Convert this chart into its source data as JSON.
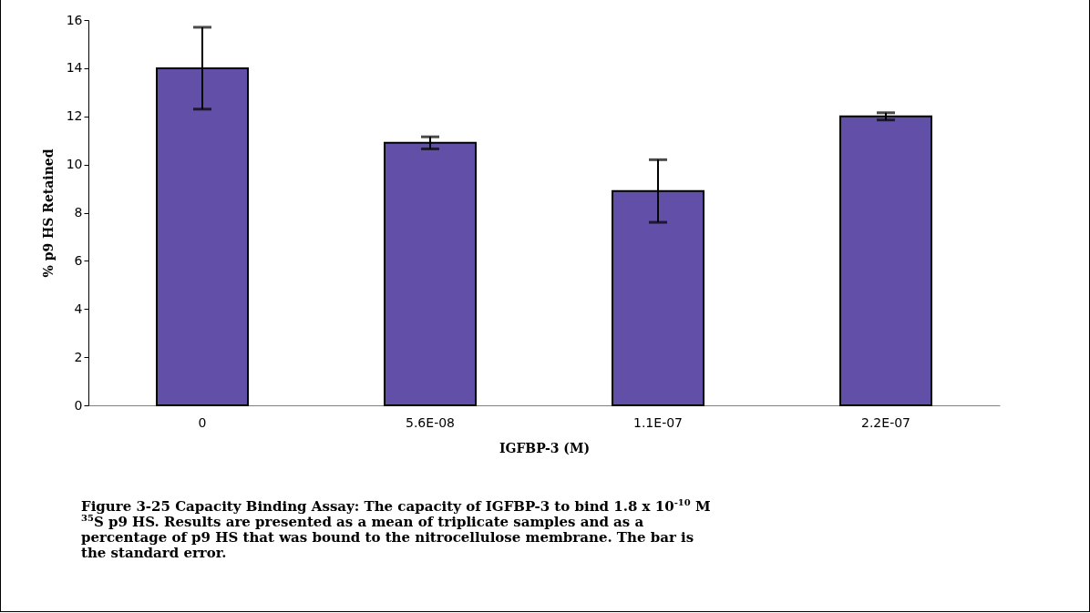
{
  "chart_data": {
    "type": "bar",
    "xlabel": "IGFBP-3 (M)",
    "ylabel": "% p9 HS Retained",
    "categories": [
      "0",
      "5.6E-08",
      "1.1E-07",
      "2.2E-07"
    ],
    "values": [
      14.0,
      10.9,
      8.9,
      12.0
    ],
    "errors": [
      1.7,
      0.25,
      1.3,
      0.15
    ],
    "color": "#6250a8",
    "ylim": [
      0,
      16
    ],
    "yticks": [
      0,
      2,
      4,
      6,
      8,
      10,
      12,
      14,
      16
    ],
    "annotations": [
      "Figure 3-25   Capacity Binding Assay: The capacity of IGFBP-3 to bind 1.8 x 10$^{-10}$ M $^{35}$S p9 HS. Results are presented as a mean of triplicate samples and as a percentage of p9 HS that was bound to the nitrocellulose membrane. The bar is the standard error."
    ]
  }
}
